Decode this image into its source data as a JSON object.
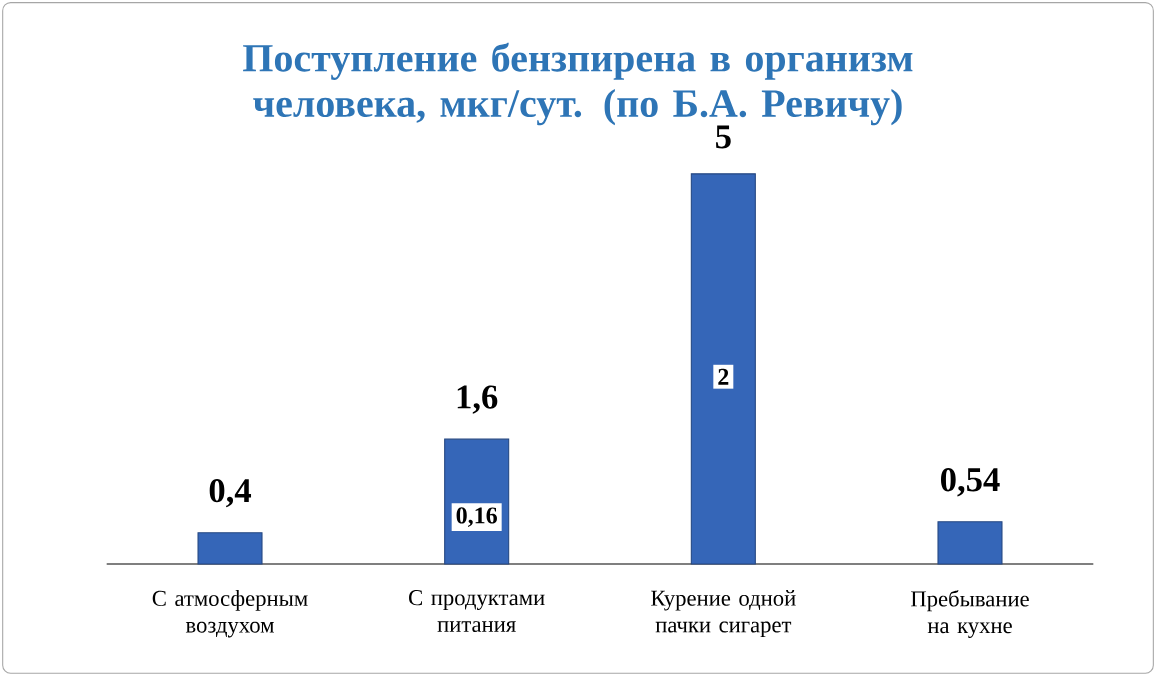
{
  "chart_data": {
    "type": "bar",
    "title": "Поступление бензпирена в организм человека, мкг/сут. (по Б.А. Ревичу)",
    "categories": [
      "С атмосферным воздухом",
      "С продуктами питания",
      "Курение одной пачки сигарет",
      "Пребывание на кухне"
    ],
    "values": [
      0.4,
      1.6,
      5,
      0.54
    ],
    "value_labels": [
      "0,4",
      "1,6",
      "5",
      "0,54"
    ],
    "color": "#3566b8",
    "annotations": [
      {
        "text": "0,16",
        "x": "С продуктами питания",
        "y": 0.6
      },
      {
        "text": "2",
        "x": "Курение одной пачки сигарет",
        "y": 2.4
      }
    ]
  }
}
